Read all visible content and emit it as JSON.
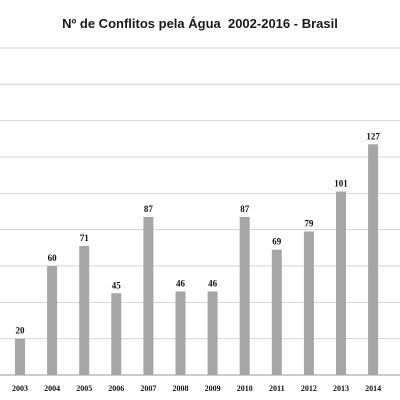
{
  "chart_data": {
    "type": "bar",
    "title": "Nº de Conflitos pela Água  2002-2016 - Brasil",
    "categories": [
      "2003",
      "2004",
      "2005",
      "2006",
      "2007",
      "2008",
      "2009",
      "2010",
      "2011",
      "2012",
      "2013",
      "2014"
    ],
    "values": [
      20,
      60,
      71,
      45,
      87,
      46,
      46,
      87,
      69,
      79,
      101,
      127
    ],
    "ylim": [
      0,
      180
    ],
    "grid": true,
    "bar_color": "#a6a6a6",
    "grid_color": "#d4d4d4"
  }
}
